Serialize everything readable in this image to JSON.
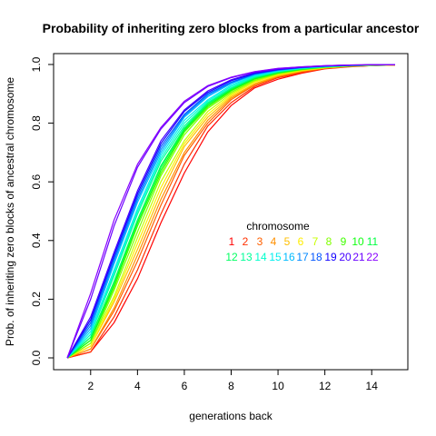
{
  "chart_data": {
    "type": "line",
    "title": "Probability of inheriting zero blocks from a particular ancestor",
    "xlabel": "generations back",
    "ylabel": "Prob. of inheriting zero blocks of ancestral chromosome",
    "xlim": [
      1,
      15
    ],
    "ylim": [
      0,
      1
    ],
    "xticks": [
      2,
      4,
      6,
      8,
      10,
      12,
      14
    ],
    "yticks": [
      0.0,
      0.2,
      0.4,
      0.6,
      0.8,
      1.0
    ],
    "ytick_labels": [
      "0.0",
      "0.2",
      "0.4",
      "0.6",
      "0.8",
      "1.0"
    ],
    "grid": false,
    "legend": {
      "title": "chromosome",
      "placement": "center-right"
    },
    "x": [
      1,
      2,
      3,
      4,
      5,
      6,
      7,
      8,
      9,
      10,
      11,
      12,
      13,
      14,
      15
    ],
    "series": [
      {
        "name": "1",
        "color": "#ff0000",
        "values": [
          0,
          0.02,
          0.12,
          0.27,
          0.46,
          0.63,
          0.77,
          0.86,
          0.92,
          0.95,
          0.97,
          0.985,
          0.992,
          0.996,
          0.998
        ]
      },
      {
        "name": "2",
        "color": "#ff3000",
        "values": [
          0,
          0.02,
          0.14,
          0.3,
          0.49,
          0.66,
          0.79,
          0.87,
          0.925,
          0.955,
          0.972,
          0.986,
          0.993,
          0.996,
          0.998
        ]
      },
      {
        "name": "3",
        "color": "#ff6000",
        "values": [
          0,
          0.03,
          0.16,
          0.33,
          0.52,
          0.69,
          0.8,
          0.88,
          0.93,
          0.958,
          0.975,
          0.987,
          0.993,
          0.997,
          0.998
        ]
      },
      {
        "name": "4",
        "color": "#ff9000",
        "values": [
          0,
          0.03,
          0.17,
          0.35,
          0.54,
          0.7,
          0.81,
          0.885,
          0.932,
          0.96,
          0.977,
          0.988,
          0.994,
          0.997,
          0.998
        ]
      },
      {
        "name": "5",
        "color": "#ffbf00",
        "values": [
          0,
          0.04,
          0.19,
          0.37,
          0.56,
          0.72,
          0.82,
          0.89,
          0.935,
          0.962,
          0.978,
          0.988,
          0.994,
          0.997,
          0.998
        ]
      },
      {
        "name": "6",
        "color": "#ffee00",
        "values": [
          0,
          0.04,
          0.2,
          0.39,
          0.58,
          0.73,
          0.83,
          0.895,
          0.94,
          0.965,
          0.98,
          0.989,
          0.994,
          0.997,
          0.999
        ]
      },
      {
        "name": "7",
        "color": "#c8ff00",
        "values": [
          0,
          0.05,
          0.21,
          0.41,
          0.6,
          0.74,
          0.84,
          0.9,
          0.943,
          0.967,
          0.981,
          0.99,
          0.995,
          0.997,
          0.999
        ]
      },
      {
        "name": "8",
        "color": "#80ff00",
        "values": [
          0,
          0.05,
          0.23,
          0.43,
          0.62,
          0.76,
          0.85,
          0.905,
          0.946,
          0.969,
          0.982,
          0.99,
          0.995,
          0.998,
          0.999
        ]
      },
      {
        "name": "9",
        "color": "#40ff00",
        "values": [
          0,
          0.06,
          0.24,
          0.45,
          0.63,
          0.77,
          0.855,
          0.91,
          0.95,
          0.971,
          0.983,
          0.991,
          0.995,
          0.998,
          0.999
        ]
      },
      {
        "name": "10",
        "color": "#10ff10",
        "values": [
          0,
          0.06,
          0.25,
          0.46,
          0.64,
          0.775,
          0.86,
          0.913,
          0.952,
          0.972,
          0.984,
          0.991,
          0.995,
          0.998,
          0.999
        ]
      },
      {
        "name": "11",
        "color": "#00ff40",
        "values": [
          0,
          0.07,
          0.26,
          0.47,
          0.65,
          0.78,
          0.865,
          0.916,
          0.954,
          0.973,
          0.985,
          0.992,
          0.996,
          0.998,
          0.999
        ]
      },
      {
        "name": "12",
        "color": "#00ff60",
        "values": [
          0,
          0.07,
          0.26,
          0.47,
          0.655,
          0.783,
          0.867,
          0.917,
          0.955,
          0.974,
          0.985,
          0.992,
          0.996,
          0.998,
          0.999
        ]
      },
      {
        "name": "13",
        "color": "#00ff99",
        "values": [
          0,
          0.08,
          0.28,
          0.49,
          0.67,
          0.79,
          0.87,
          0.92,
          0.957,
          0.976,
          0.986,
          0.992,
          0.996,
          0.998,
          0.999
        ]
      },
      {
        "name": "14",
        "color": "#00ffcc",
        "values": [
          0,
          0.08,
          0.29,
          0.5,
          0.68,
          0.8,
          0.875,
          0.925,
          0.96,
          0.977,
          0.987,
          0.993,
          0.996,
          0.998,
          0.999
        ]
      },
      {
        "name": "15",
        "color": "#00eeee",
        "values": [
          0,
          0.09,
          0.3,
          0.51,
          0.69,
          0.81,
          0.88,
          0.93,
          0.962,
          0.978,
          0.988,
          0.993,
          0.997,
          0.998,
          0.999
        ]
      },
      {
        "name": "16",
        "color": "#00bbff",
        "values": [
          0,
          0.1,
          0.32,
          0.53,
          0.7,
          0.82,
          0.89,
          0.935,
          0.965,
          0.98,
          0.989,
          0.994,
          0.997,
          0.999,
          0.999
        ]
      },
      {
        "name": "17",
        "color": "#0088ff",
        "values": [
          0,
          0.11,
          0.33,
          0.54,
          0.71,
          0.825,
          0.895,
          0.938,
          0.967,
          0.981,
          0.989,
          0.994,
          0.997,
          0.999,
          0.999
        ]
      },
      {
        "name": "18",
        "color": "#0055ff",
        "values": [
          0,
          0.12,
          0.34,
          0.55,
          0.72,
          0.83,
          0.9,
          0.94,
          0.968,
          0.982,
          0.99,
          0.995,
          0.997,
          0.999,
          0.999
        ]
      },
      {
        "name": "19",
        "color": "#1100ff",
        "values": [
          0,
          0.13,
          0.35,
          0.56,
          0.73,
          0.84,
          0.905,
          0.945,
          0.97,
          0.983,
          0.99,
          0.995,
          0.997,
          0.999,
          0.999
        ]
      },
      {
        "name": "20",
        "color": "#4400ff",
        "values": [
          0,
          0.14,
          0.36,
          0.57,
          0.74,
          0.845,
          0.91,
          0.948,
          0.972,
          0.984,
          0.991,
          0.995,
          0.998,
          0.999,
          0.999
        ]
      },
      {
        "name": "21",
        "color": "#6a00ff",
        "values": [
          0,
          0.2,
          0.45,
          0.65,
          0.78,
          0.87,
          0.925,
          0.955,
          0.975,
          0.986,
          0.992,
          0.996,
          0.998,
          0.999,
          0.999
        ]
      },
      {
        "name": "22",
        "color": "#8800ff",
        "values": [
          0,
          0.22,
          0.47,
          0.66,
          0.785,
          0.875,
          0.928,
          0.957,
          0.976,
          0.987,
          0.992,
          0.996,
          0.998,
          0.999,
          0.999
        ]
      }
    ]
  }
}
